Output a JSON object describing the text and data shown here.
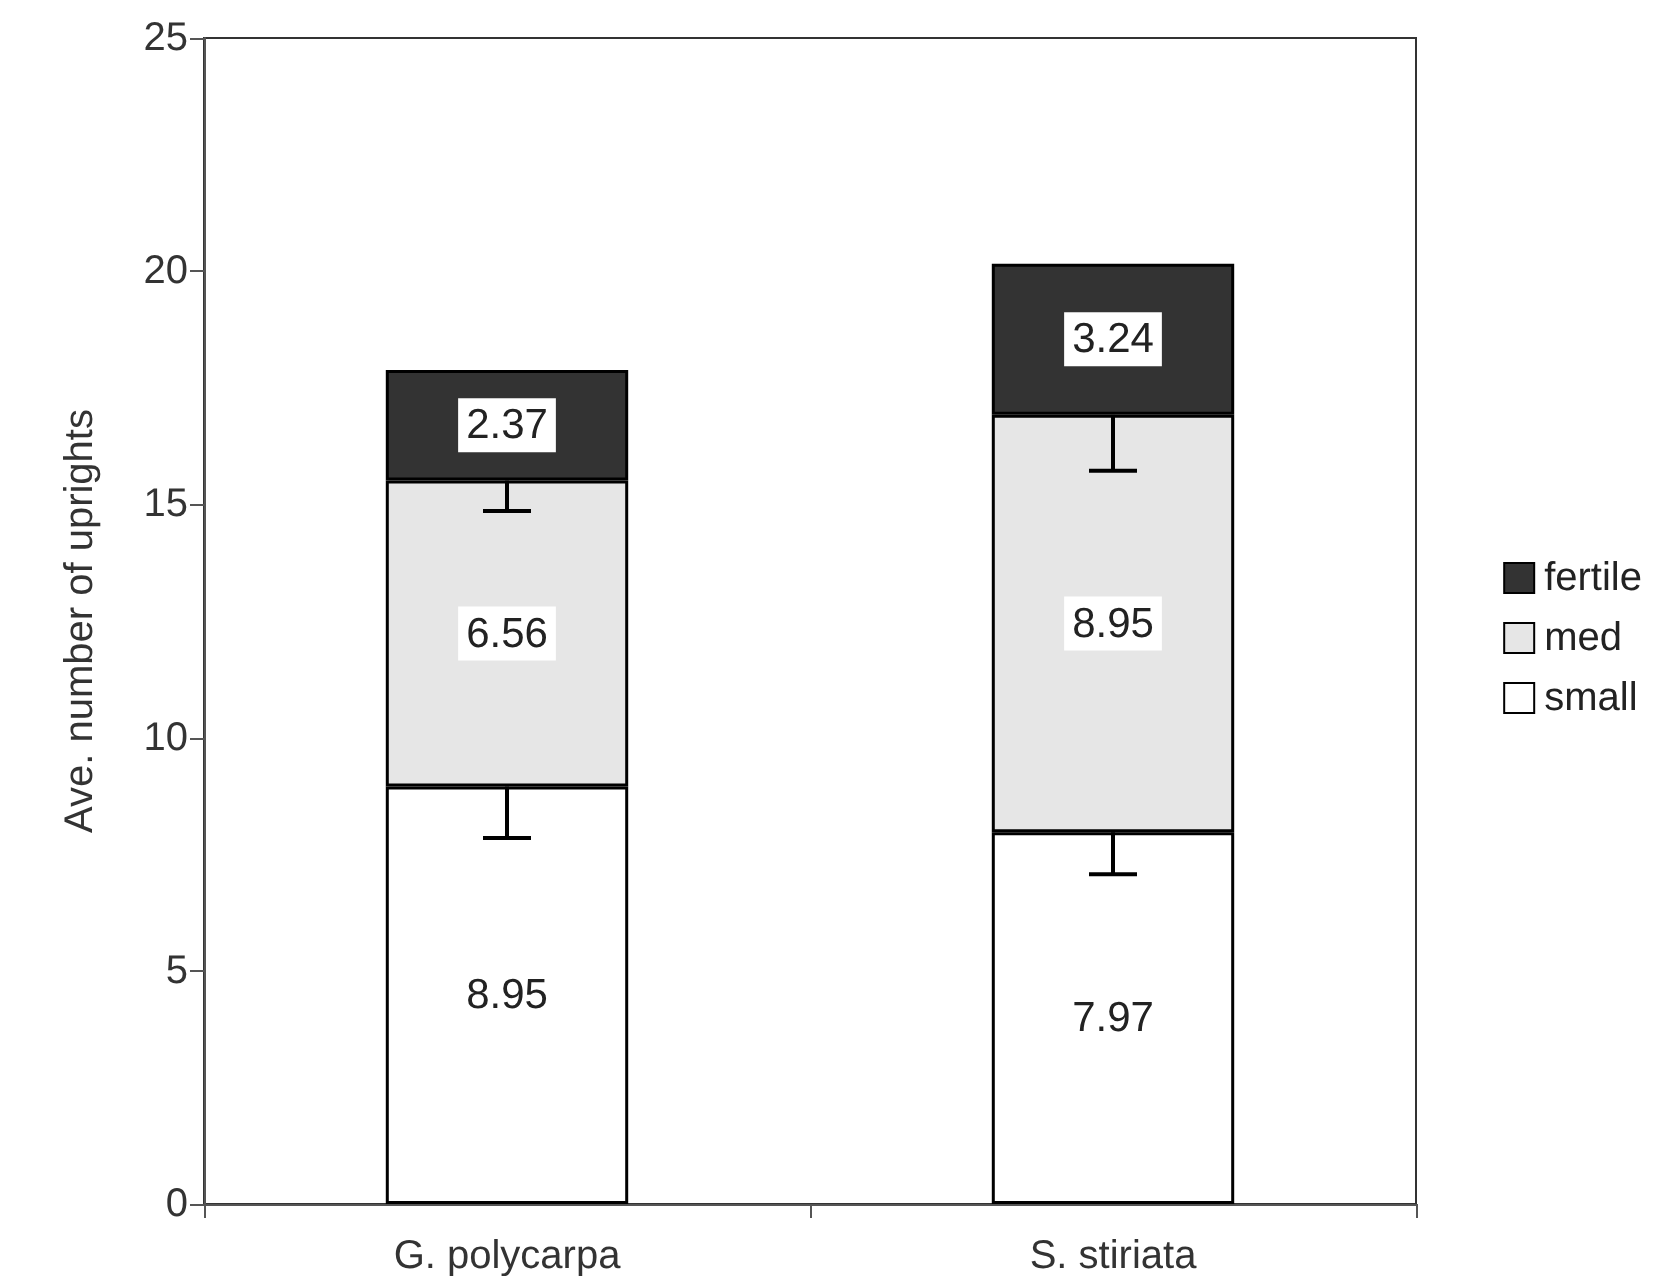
{
  "chart_data": {
    "type": "bar",
    "stacked": true,
    "ylabel": "Ave. number of uprights",
    "categories": [
      "G. polycarpa",
      "S. stiriata"
    ],
    "series": [
      {
        "name": "small",
        "color": "#ffffff",
        "values": [
          8.95,
          7.97
        ],
        "errors": [
          [
            7.85,
            8.95
          ],
          [
            7.07,
            7.97
          ]
        ]
      },
      {
        "name": "med",
        "color": "#e6e6e6",
        "values": [
          6.56,
          8.95
        ],
        "errors": [
          [
            14.86,
            15.51
          ],
          [
            15.72,
            16.92
          ]
        ]
      },
      {
        "name": "fertile",
        "color": "#333333",
        "values": [
          2.37,
          3.24
        ],
        "errors": [
          null,
          null
        ]
      }
    ],
    "ylim": [
      0,
      25
    ],
    "yticks": [
      0,
      5,
      10,
      15,
      20,
      25
    ],
    "grid": false,
    "legend": "right",
    "data_labels": true
  }
}
